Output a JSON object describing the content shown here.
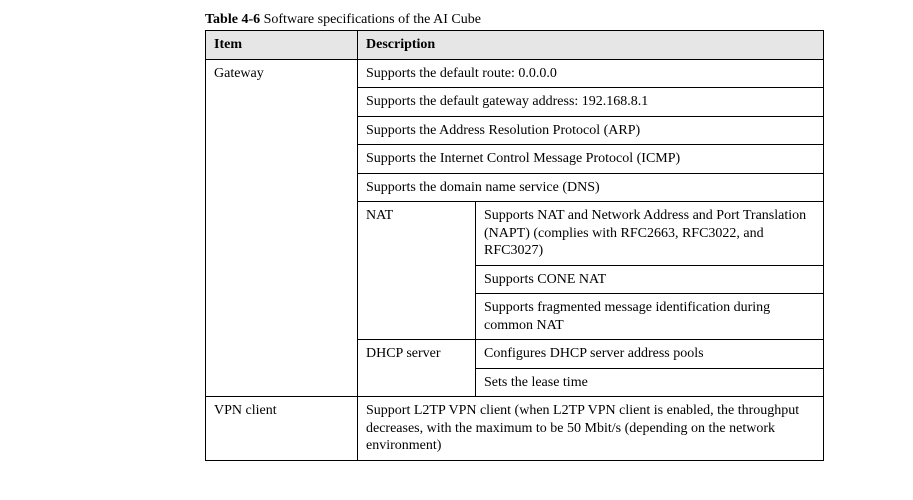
{
  "caption": {
    "label_bold": "Table 4-6",
    "label_rest": " Software specifications of the AI Cube"
  },
  "table": {
    "headers": {
      "item": "Item",
      "description": "Description"
    },
    "gateway": {
      "label": "Gateway",
      "simple_rows": [
        "Supports the default route: 0.0.0.0",
        "Supports the default gateway address: 192.168.8.1",
        "Supports the Address Resolution Protocol (ARP)",
        "Supports the Internet Control Message Protocol (ICMP)",
        "Supports the domain name service (DNS)"
      ],
      "nat": {
        "label": "NAT",
        "rows": [
          "Supports NAT and Network Address and Port Translation (NAPT) (complies with RFC2663, RFC3022, and RFC3027)",
          "Supports CONE NAT",
          "Supports fragmented message identification during common NAT"
        ]
      },
      "dhcp": {
        "label": "DHCP server",
        "rows": [
          "Configures DHCP server address pools",
          "Sets the lease time"
        ]
      }
    },
    "vpn": {
      "label": "VPN client",
      "description": "Support L2TP VPN client (when L2TP VPN client is enabled, the throughput decreases, with the maximum to be 50 Mbit/s (depending on the network environment)"
    }
  },
  "style": {
    "header_bg": "#e6e6e6",
    "border_color": "#000000",
    "font_family": "Times New Roman",
    "font_size_pt": 11
  }
}
